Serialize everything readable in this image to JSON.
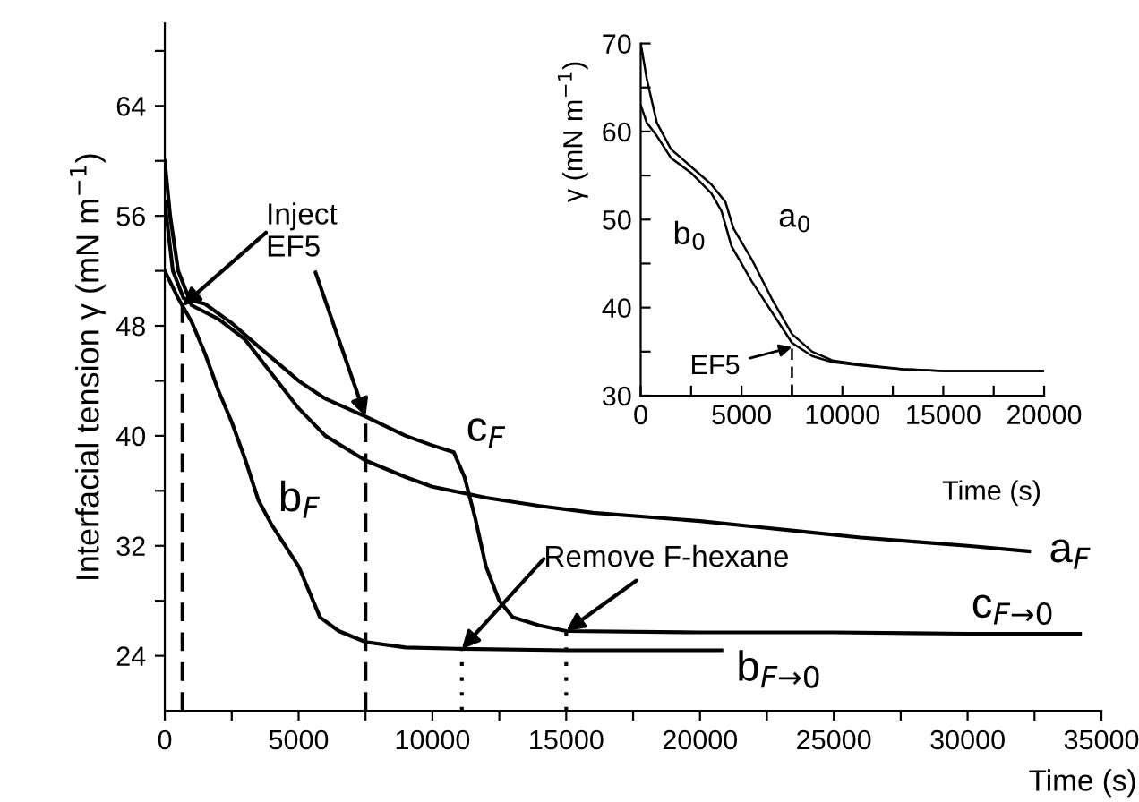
{
  "chart_data": [
    {
      "type": "line",
      "xlabel": "Time (s)",
      "ylabel": "Interfacial tension γ (mN m$^{−1}$)",
      "xlim": [
        0,
        35000
      ],
      "ylim": [
        20,
        70
      ],
      "xticks": [
        0,
        {
          "value": 2500,
          "label": null
        },
        5000,
        {
          "value": 7500,
          "label": null
        },
        10000,
        {
          "value": 12500,
          "label": null
        },
        15000,
        {
          "value": 17500,
          "label": null
        },
        20000,
        {
          "value": 22500,
          "label": null
        },
        25000,
        {
          "value": 27500,
          "label": null
        },
        30000,
        {
          "value": 32500,
          "label": null
        },
        35000
      ],
      "yticks": [
        24,
        {
          "value": 28,
          "label": null
        },
        32,
        {
          "value": 36,
          "label": null
        },
        40,
        {
          "value": 44,
          "label": null
        },
        48,
        {
          "value": 52,
          "label": null
        },
        56,
        {
          "value": 60,
          "label": null
        },
        64,
        {
          "value": 68,
          "label": null
        }
      ],
      "grid": false,
      "marker": "none",
      "line_style": "solid",
      "series": [
        {
          "name": "a$_{F}$",
          "color": "#000000",
          "x": [
            0,
            200,
            500,
            1000,
            2000,
            3000,
            4000,
            5000,
            6000,
            7500,
            9000,
            10000,
            12000,
            14000,
            16000,
            18000,
            20000,
            22000,
            24000,
            26000,
            28000,
            30000,
            32300
          ],
          "values": [
            60,
            56,
            52,
            49.5,
            48.5,
            47,
            44.5,
            42,
            40,
            38.2,
            37,
            36.3,
            35.5,
            34.9,
            34.4,
            34.1,
            33.8,
            33.4,
            33.0,
            32.6,
            32.3,
            32.0,
            31.6
          ]
        },
        {
          "name": "c$_{F}$",
          "color": "#000000",
          "x": [
            0,
            300,
            700,
            1500,
            2500,
            3500,
            5000,
            6000,
            7500,
            9000,
            10000,
            10800,
            11200,
            11600,
            12000,
            12500,
            13000,
            14000,
            15000,
            20000,
            25000,
            30000,
            34200
          ],
          "values": [
            57,
            52,
            50,
            49.6,
            48.2,
            46.5,
            44,
            42.7,
            41.4,
            40,
            39.3,
            38.8,
            37,
            34,
            30.5,
            28,
            26.8,
            26.2,
            25.8,
            25.7,
            25.7,
            25.6,
            25.6
          ]
        },
        {
          "name": "b$_{F}$",
          "color": "#000000",
          "x": [
            0,
            500,
            1000,
            1500,
            2000,
            2500,
            3000,
            3500,
            4000,
            5000,
            5800,
            6500,
            7500,
            9000,
            11100,
            15000,
            20800
          ],
          "values": [
            52,
            50,
            48.3,
            46,
            43.3,
            41,
            38.3,
            35.3,
            33.5,
            30.5,
            26.8,
            25.8,
            25,
            24.6,
            24.5,
            24.4,
            24.4
          ]
        }
      ],
      "annotations": [
        {
          "text": "Inject\nEF5",
          "x": 7500,
          "y": 41.4
        },
        {
          "text": "Remove F-hexane",
          "x": 15000,
          "y": 25.8
        },
        {
          "text": "c$_{F→0}$",
          "x": 32000,
          "y": 25.6
        },
        {
          "text": "b$_{F→0}$",
          "x": 20800,
          "y": 24.4
        }
      ],
      "ref_lines": [
        {
          "axis": "x",
          "value": 660,
          "line_style": "dashed"
        },
        {
          "axis": "x",
          "value": 7500,
          "line_style": "dashed"
        },
        {
          "axis": "x",
          "value": 11100,
          "line_style": "dotted"
        },
        {
          "axis": "x",
          "value": 15000,
          "line_style": "dotted"
        }
      ]
    },
    {
      "type": "line",
      "xlabel": "Time (s)",
      "ylabel": "γ (mN m$^{−1}$)",
      "xlim": [
        0,
        20000
      ],
      "ylim": [
        30,
        70
      ],
      "xticks": [
        0,
        {
          "value": 2500,
          "label": null
        },
        5000,
        {
          "value": 7500,
          "label": null
        },
        10000,
        {
          "value": 12500,
          "label": null
        },
        15000,
        {
          "value": 17500,
          "label": null
        },
        20000
      ],
      "yticks": [
        30,
        {
          "value": 35,
          "label": null
        },
        40,
        {
          "value": 45,
          "label": null
        },
        50,
        {
          "value": 55,
          "label": null
        },
        60,
        {
          "value": 65,
          "label": null
        },
        70
      ],
      "grid": false,
      "marker": "none",
      "line_style": "solid",
      "series": [
        {
          "name": "a$_{0}$",
          "color": "#000000",
          "x": [
            0,
            300,
            800,
            1500,
            2500,
            3500,
            4200,
            4600,
            5500,
            6500,
            7500,
            8500,
            9500,
            11000,
            13000,
            15000,
            20000
          ],
          "values": [
            70,
            66,
            61,
            58,
            56,
            54,
            52,
            49,
            45.5,
            41,
            37,
            35,
            34,
            33.5,
            33,
            32.8,
            32.8
          ]
        },
        {
          "name": "b$_{0}$",
          "color": "#000000",
          "x": [
            0,
            300,
            800,
            1500,
            2500,
            3500,
            4000,
            4500,
            5500,
            6500,
            7500,
            8500,
            9500,
            11000,
            13000,
            15000,
            20000
          ],
          "values": [
            63,
            61,
            59.5,
            57,
            55.3,
            53,
            51,
            47,
            43,
            39.5,
            36,
            34.5,
            33.8,
            33.4,
            33,
            32.8,
            32.8
          ]
        }
      ],
      "annotations": [
        {
          "text": "EF5",
          "x": 7500,
          "y": 35.5
        }
      ],
      "ref_lines": [
        {
          "axis": "x",
          "value": 7500,
          "line_style": "dashed"
        }
      ]
    }
  ]
}
